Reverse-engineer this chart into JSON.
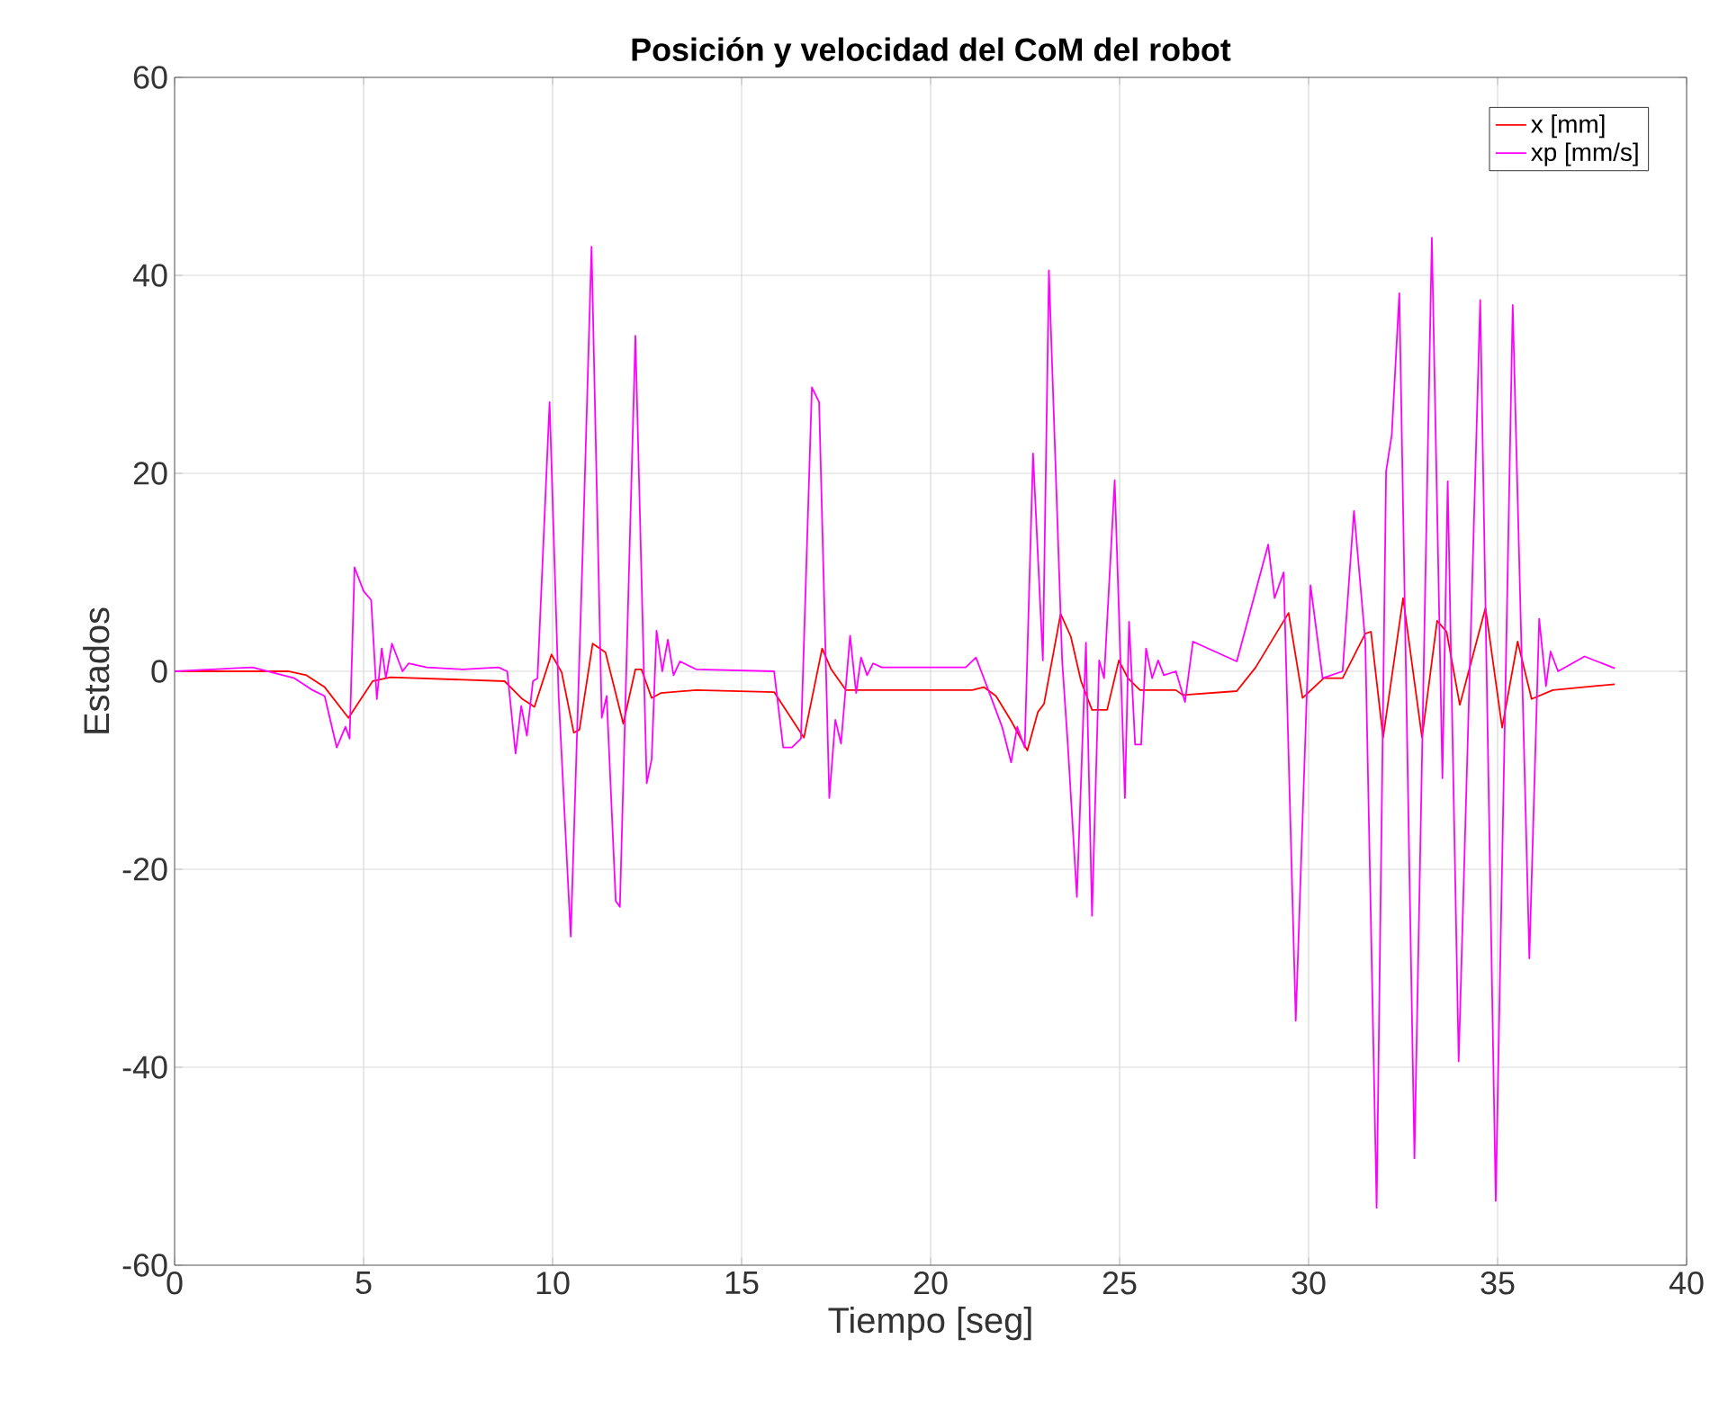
{
  "chart_data": {
    "type": "line",
    "title": "Posición y velocidad del CoM del robot",
    "xlabel": "Tiempo [seg]",
    "ylabel": "Estados",
    "xlim": [
      0,
      40
    ],
    "ylim": [
      -60,
      60
    ],
    "xticks": [
      0,
      5,
      10,
      15,
      20,
      25,
      30,
      35,
      40
    ],
    "yticks": [
      -60,
      -40,
      -20,
      0,
      20,
      40,
      60
    ],
    "grid": true,
    "legend": "top right",
    "line_style": "solid",
    "marker": "none",
    "series": [
      {
        "name": "x [mm]",
        "color": "#ff0000",
        "x": [
          0,
          3.0,
          3.49,
          3.97,
          4.6,
          5.24,
          5.71,
          8.73,
          9.2,
          9.52,
          9.97,
          10.24,
          10.56,
          10.71,
          11.06,
          11.4,
          11.87,
          12.19,
          12.35,
          12.62,
          12.86,
          13.8,
          15.86,
          16.65,
          17.13,
          17.37,
          17.76,
          21.1,
          21.41,
          21.73,
          22.13,
          22.56,
          22.84,
          23.0,
          23.44,
          23.71,
          23.98,
          24.27,
          24.67,
          24.98,
          25.22,
          25.54,
          26.49,
          26.67,
          28.1,
          28.6,
          29.47,
          29.84,
          30.4,
          30.9,
          31.5,
          31.65,
          31.97,
          32.5,
          33.0,
          33.4,
          33.65,
          34.0,
          34.68,
          35.12,
          35.53,
          35.9,
          36.46,
          38.1
        ],
        "values": [
          0,
          0,
          -0.4,
          -1.6,
          -4.7,
          -1,
          -0.6,
          -1,
          -2.8,
          -3.6,
          1.7,
          -0.1,
          -6.2,
          -5.9,
          2.8,
          1.9,
          -5.3,
          0.2,
          0.2,
          -2.7,
          -2.2,
          -1.9,
          -2.1,
          -6.7,
          2.3,
          0.2,
          -1.9,
          -1.9,
          -1.6,
          -2.5,
          -5,
          -8,
          -4.1,
          -3.3,
          5.8,
          3.5,
          -1,
          -3.9,
          -3.9,
          1.1,
          -0.7,
          -1.9,
          -1.9,
          -2.4,
          -2,
          0.4,
          5.9,
          -2.7,
          -0.7,
          -0.7,
          3.8,
          4,
          -6.7,
          7.4,
          -6.7,
          5.1,
          4,
          -3.4,
          6.4,
          -5.7,
          3,
          -2.8,
          -1.9,
          -1.3
        ]
      },
      {
        "name": "xp [mm/s]",
        "color": "#ff00ff",
        "x": [
          0,
          2.06,
          3.17,
          3.65,
          3.97,
          4.29,
          4.52,
          4.63,
          4.76,
          5.0,
          5.2,
          5.35,
          5.48,
          5.59,
          5.75,
          6.03,
          6.19,
          6.67,
          7.62,
          8.57,
          8.8,
          9.02,
          9.17,
          9.32,
          9.48,
          9.6,
          9.92,
          10.16,
          10.48,
          10.8,
          11.03,
          11.3,
          11.43,
          11.67,
          11.78,
          12.19,
          12.49,
          12.62,
          12.75,
          12.9,
          13.05,
          13.2,
          13.37,
          13.8,
          15.86,
          16.1,
          16.33,
          16.57,
          16.86,
          17.05,
          17.32,
          17.48,
          17.63,
          17.87,
          18.03,
          18.16,
          18.32,
          18.48,
          18.71,
          20.93,
          21.2,
          21.41,
          21.89,
          22.13,
          22.29,
          22.49,
          22.71,
          22.97,
          23.13,
          23.48,
          23.63,
          23.87,
          24.11,
          24.27,
          24.46,
          24.59,
          24.87,
          25.14,
          25.25,
          25.41,
          25.57,
          25.7,
          25.86,
          26.02,
          26.17,
          26.49,
          26.73,
          26.94,
          28.1,
          28.93,
          29.1,
          29.34,
          29.66,
          30.05,
          30.37,
          30.9,
          31.2,
          31.5,
          31.8,
          32.05,
          32.2,
          32.4,
          32.8,
          33.26,
          33.54,
          33.68,
          33.97,
          34.54,
          34.95,
          35.4,
          35.84,
          36.1,
          36.28,
          36.4,
          36.6,
          37.3,
          38.1
        ],
        "values": [
          0,
          0.4,
          -0.7,
          -1.9,
          -2.5,
          -7.7,
          -5.6,
          -6.8,
          10.5,
          8.1,
          7.2,
          -2.8,
          2.3,
          -0.7,
          2.8,
          0,
          0.8,
          0.4,
          0.2,
          0.4,
          0,
          -8.3,
          -3.5,
          -6.5,
          -1,
          -0.7,
          27.2,
          -2.5,
          -26.8,
          12.6,
          42.9,
          -4.7,
          -2.5,
          -23.2,
          -23.8,
          33.9,
          -11.3,
          -8.9,
          4.1,
          0,
          3.2,
          -0.4,
          1,
          0.2,
          0,
          -7.7,
          -7.7,
          -6.8,
          28.7,
          27.2,
          -12.8,
          -4.9,
          -7.3,
          3.6,
          -2.2,
          1.4,
          -0.4,
          0.8,
          0.4,
          0.4,
          1.4,
          -0.7,
          -5.6,
          -9.2,
          -5.6,
          -7.7,
          22,
          1.1,
          40.5,
          1.1,
          -7.4,
          -22.8,
          2.9,
          -24.7,
          1.1,
          -0.7,
          19.3,
          -12.8,
          5,
          -7.4,
          -7.4,
          2.3,
          -0.7,
          1.1,
          -0.4,
          0,
          -3.1,
          3,
          1,
          12.8,
          7.4,
          10,
          -35.3,
          8.7,
          -0.7,
          0,
          16.2,
          3,
          -54.2,
          20.2,
          23.9,
          38.2,
          -49.2,
          43.8,
          -10.8,
          19.2,
          -39.4,
          37.5,
          -53.5,
          37,
          -29,
          5.3,
          -1.5,
          2,
          0,
          1.5,
          0.3
        ]
      }
    ]
  }
}
